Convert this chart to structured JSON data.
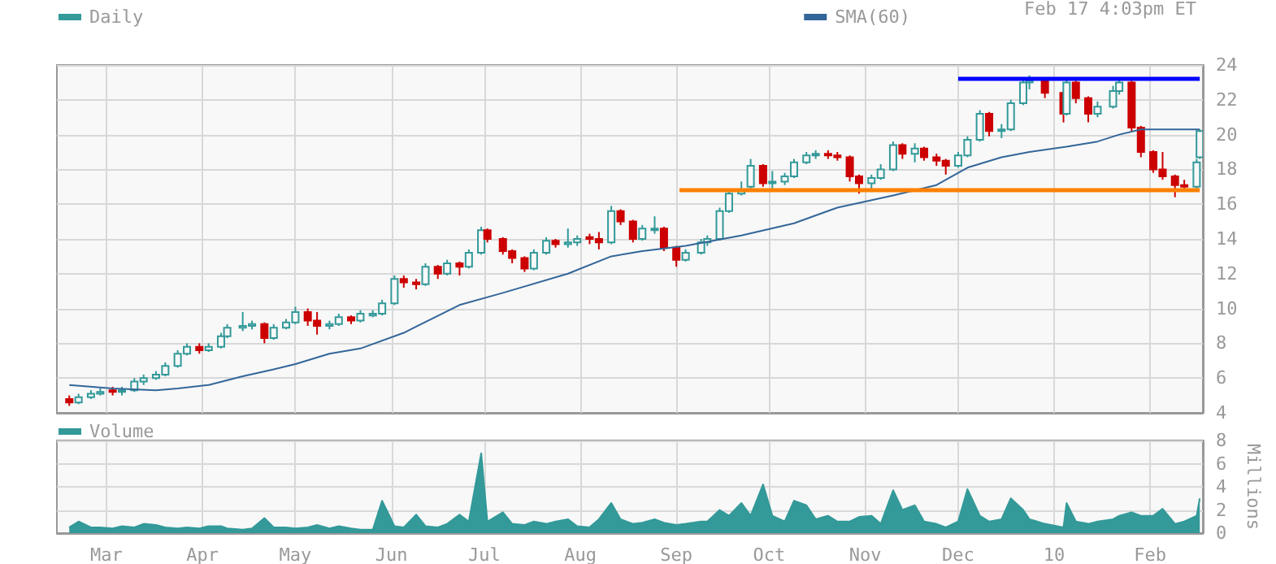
{
  "chart_data": [
    {
      "type": "candlestick",
      "legend": "top",
      "grid": true,
      "tick_labels": "y",
      "annotations": [
        "Feb 17 4:03pm ET"
      ],
      "x": [
        "2009-02-17",
        "2009-02-20",
        "2009-02-24",
        "2009-02-27",
        "2009-03-03",
        "2009-03-06",
        "2009-03-10",
        "2009-03-13",
        "2009-03-17",
        "2009-03-20",
        "2009-03-24",
        "2009-03-27",
        "2009-03-31",
        "2009-04-03",
        "2009-04-07",
        "2009-04-09",
        "2009-04-14",
        "2009-04-17",
        "2009-04-21",
        "2009-04-24",
        "2009-04-28",
        "2009-05-01",
        "2009-05-05",
        "2009-05-08",
        "2009-05-12",
        "2009-05-15",
        "2009-05-19",
        "2009-05-22",
        "2009-05-26",
        "2009-05-29",
        "2009-06-02",
        "2009-06-05",
        "2009-06-09",
        "2009-06-12",
        "2009-06-16",
        "2009-06-19",
        "2009-06-23",
        "2009-06-26",
        "2009-06-30",
        "2009-07-02",
        "2009-07-07",
        "2009-07-10",
        "2009-07-14",
        "2009-07-17",
        "2009-07-21",
        "2009-07-24",
        "2009-07-28",
        "2009-07-31",
        "2009-08-04",
        "2009-08-07",
        "2009-08-11",
        "2009-08-14",
        "2009-08-18",
        "2009-08-21",
        "2009-08-25",
        "2009-08-28",
        "2009-09-01",
        "2009-09-04",
        "2009-09-09",
        "2009-09-11",
        "2009-09-15",
        "2009-09-18",
        "2009-09-22",
        "2009-09-25",
        "2009-09-29",
        "2009-10-02",
        "2009-10-06",
        "2009-10-09",
        "2009-10-13",
        "2009-10-16",
        "2009-10-20",
        "2009-10-23",
        "2009-10-27",
        "2009-10-30",
        "2009-11-03",
        "2009-11-06",
        "2009-11-10",
        "2009-11-13",
        "2009-11-17",
        "2009-11-20",
        "2009-11-24",
        "2009-11-27",
        "2009-12-01",
        "2009-12-04",
        "2009-12-08",
        "2009-12-11",
        "2009-12-15",
        "2009-12-18",
        "2009-12-22",
        "2009-12-24",
        "2009-12-29",
        "2010-01-04",
        "2010-01-05",
        "2010-01-08",
        "2010-01-12",
        "2010-01-15",
        "2010-01-20",
        "2010-01-22",
        "2010-01-26",
        "2010-01-29",
        "2010-02-02",
        "2010-02-05",
        "2010-02-09",
        "2010-02-12",
        "2010-02-16",
        "2010-02-17"
      ],
      "xlim": [
        "2009-02-13",
        "2010-02-18"
      ],
      "xticks": [
        {
          "value": "2009-03-01",
          "label": null
        },
        {
          "value": "2009-04-01",
          "label": null
        },
        {
          "value": "2009-05-01",
          "label": null
        },
        {
          "value": "2009-06-01",
          "label": null
        },
        {
          "value": "2009-07-01",
          "label": null
        },
        {
          "value": "2009-08-01",
          "label": null
        },
        {
          "value": "2009-09-01",
          "label": null
        },
        {
          "value": "2009-10-01",
          "label": null
        },
        {
          "value": "2009-11-01",
          "label": null
        },
        {
          "value": "2009-12-01",
          "label": null
        },
        {
          "value": "2010-01-01",
          "label": null
        },
        {
          "value": "2010-02-01",
          "label": null
        }
      ],
      "ylim": [
        4,
        24
      ],
      "yticks": [
        4,
        6,
        8,
        10,
        12,
        14,
        16,
        18,
        20,
        22,
        24
      ],
      "series": [
        {
          "name": "Daily",
          "color": "#339999",
          "ohlc": [
            [
              4.8,
              5.0,
              4.4,
              4.6
            ],
            [
              4.6,
              5.1,
              4.5,
              4.9
            ],
            [
              4.9,
              5.3,
              4.8,
              5.1
            ],
            [
              5.1,
              5.4,
              5.0,
              5.2
            ],
            [
              5.3,
              5.5,
              5.0,
              5.2
            ],
            [
              5.2,
              5.5,
              5.0,
              5.3
            ],
            [
              5.3,
              6.0,
              5.2,
              5.8
            ],
            [
              5.8,
              6.2,
              5.6,
              6.0
            ],
            [
              6.0,
              6.4,
              5.9,
              6.2
            ],
            [
              6.2,
              6.9,
              6.1,
              6.7
            ],
            [
              6.7,
              7.6,
              6.6,
              7.4
            ],
            [
              7.4,
              8.0,
              7.3,
              7.8
            ],
            [
              7.8,
              8.0,
              7.4,
              7.6
            ],
            [
              7.6,
              8.0,
              7.5,
              7.8
            ],
            [
              7.8,
              8.6,
              7.7,
              8.4
            ],
            [
              8.4,
              9.1,
              8.3,
              8.9
            ],
            [
              8.9,
              9.8,
              8.7,
              9.0
            ],
            [
              9.0,
              9.3,
              8.8,
              9.1
            ],
            [
              9.1,
              9.2,
              8.0,
              8.3
            ],
            [
              8.3,
              9.1,
              8.2,
              8.9
            ],
            [
              8.9,
              9.4,
              8.8,
              9.2
            ],
            [
              9.2,
              10.1,
              9.1,
              9.8
            ],
            [
              9.8,
              10.0,
              9.0,
              9.3
            ],
            [
              9.3,
              9.8,
              8.5,
              9.0
            ],
            [
              9.0,
              9.3,
              8.8,
              9.1
            ],
            [
              9.1,
              9.7,
              9.0,
              9.5
            ],
            [
              9.5,
              9.6,
              9.1,
              9.3
            ],
            [
              9.3,
              9.9,
              9.2,
              9.7
            ],
            [
              9.6,
              9.9,
              9.5,
              9.7
            ],
            [
              9.7,
              10.5,
              9.6,
              10.3
            ],
            [
              10.3,
              11.9,
              10.2,
              11.7
            ],
            [
              11.7,
              11.9,
              11.2,
              11.5
            ],
            [
              11.5,
              11.7,
              11.1,
              11.4
            ],
            [
              11.4,
              12.6,
              11.3,
              12.4
            ],
            [
              12.4,
              12.5,
              11.7,
              12.0
            ],
            [
              12.0,
              12.8,
              11.9,
              12.6
            ],
            [
              12.6,
              12.7,
              11.9,
              12.4
            ],
            [
              12.4,
              13.4,
              12.3,
              13.2
            ],
            [
              13.2,
              14.7,
              13.1,
              14.5
            ],
            [
              14.5,
              14.6,
              13.8,
              14.0
            ],
            [
              14.0,
              14.1,
              13.1,
              13.3
            ],
            [
              13.3,
              13.4,
              12.6,
              12.9
            ],
            [
              12.9,
              13.0,
              12.1,
              12.3
            ],
            [
              12.3,
              13.4,
              12.2,
              13.2
            ],
            [
              13.2,
              14.1,
              13.1,
              13.9
            ],
            [
              13.9,
              14.0,
              13.5,
              13.7
            ],
            [
              13.7,
              14.6,
              13.5,
              13.8
            ],
            [
              13.8,
              14.2,
              13.6,
              14.0
            ],
            [
              14.1,
              14.3,
              13.7,
              14.0
            ],
            [
              14.0,
              14.4,
              13.4,
              13.8
            ],
            [
              13.8,
              15.9,
              13.7,
              15.6
            ],
            [
              15.6,
              15.7,
              14.8,
              15.0
            ],
            [
              15.0,
              15.1,
              13.8,
              14.0
            ],
            [
              14.0,
              14.8,
              13.9,
              14.6
            ],
            [
              14.5,
              15.3,
              14.3,
              14.6
            ],
            [
              14.6,
              14.7,
              13.3,
              13.5
            ],
            [
              13.5,
              13.6,
              12.4,
              12.8
            ],
            [
              12.8,
              13.4,
              12.7,
              13.2
            ],
            [
              13.2,
              14.0,
              13.1,
              13.8
            ],
            [
              13.8,
              14.2,
              13.6,
              14.0
            ],
            [
              14.0,
              15.8,
              13.9,
              15.6
            ],
            [
              15.6,
              16.8,
              15.5,
              16.6
            ],
            [
              16.6,
              17.3,
              16.5,
              16.8
            ],
            [
              17.0,
              18.6,
              16.9,
              18.2
            ],
            [
              18.2,
              18.3,
              17.0,
              17.2
            ],
            [
              17.2,
              17.9,
              16.9,
              17.3
            ],
            [
              17.3,
              17.8,
              17.1,
              17.6
            ],
            [
              17.6,
              18.6,
              17.5,
              18.4
            ],
            [
              18.4,
              19.0,
              18.3,
              18.8
            ],
            [
              18.8,
              19.1,
              18.6,
              18.9
            ],
            [
              18.9,
              19.1,
              18.6,
              18.8
            ],
            [
              18.8,
              19.0,
              18.5,
              18.7
            ],
            [
              18.7,
              18.8,
              17.3,
              17.6
            ],
            [
              17.6,
              17.7,
              16.6,
              17.2
            ],
            [
              17.2,
              17.7,
              16.7,
              17.5
            ],
            [
              17.5,
              18.3,
              17.4,
              18.0
            ],
            [
              18.0,
              19.6,
              17.9,
              19.4
            ],
            [
              19.4,
              19.5,
              18.6,
              18.9
            ],
            [
              18.9,
              19.5,
              18.4,
              19.2
            ],
            [
              19.2,
              19.3,
              18.5,
              18.7
            ],
            [
              18.7,
              18.9,
              18.2,
              18.5
            ],
            [
              18.5,
              18.6,
              17.7,
              18.2
            ],
            [
              18.2,
              19.0,
              18.1,
              18.8
            ],
            [
              18.8,
              19.9,
              18.7,
              19.7
            ],
            [
              19.7,
              21.4,
              19.6,
              21.2
            ],
            [
              21.2,
              21.3,
              19.9,
              20.2
            ],
            [
              20.2,
              20.6,
              19.8,
              20.3
            ],
            [
              20.3,
              22.0,
              20.2,
              21.8
            ],
            [
              21.8,
              23.2,
              21.7,
              23.0
            ],
            [
              23.0,
              23.4,
              22.6,
              23.1
            ],
            [
              23.1,
              23.2,
              22.1,
              22.4
            ],
            [
              22.4,
              22.5,
              20.7,
              21.2
            ],
            [
              21.2,
              23.3,
              21.1,
              23.0
            ],
            [
              23.0,
              23.1,
              21.8,
              22.1
            ],
            [
              22.1,
              22.2,
              20.7,
              21.2
            ],
            [
              21.2,
              21.9,
              21.0,
              21.6
            ],
            [
              21.6,
              22.8,
              21.5,
              22.5
            ],
            [
              22.5,
              23.2,
              22.3,
              23.0
            ],
            [
              23.0,
              23.1,
              20.2,
              20.4
            ],
            [
              20.4,
              20.5,
              18.7,
              19.0
            ],
            [
              19.0,
              19.1,
              17.8,
              18.0
            ],
            [
              18.0,
              19.0,
              17.4,
              17.6
            ],
            [
              17.6,
              17.7,
              16.4,
              17.1
            ],
            [
              17.1,
              17.4,
              16.8,
              17.0
            ],
            [
              17.0,
              18.6,
              16.9,
              18.4
            ],
            [
              18.7,
              20.3,
              18.6,
              20.2
            ]
          ],
          "colors": [
            "#cc0000",
            "#339999",
            "#339999",
            "#339999",
            "#cc0000",
            "#339999",
            "#339999",
            "#339999",
            "#339999",
            "#339999",
            "#339999",
            "#339999",
            "#cc0000",
            "#339999",
            "#339999",
            "#339999",
            "#339999",
            "#339999",
            "#cc0000",
            "#339999",
            "#339999",
            "#339999",
            "#cc0000",
            "#cc0000",
            "#339999",
            "#339999",
            "#cc0000",
            "#339999",
            "#339999",
            "#339999",
            "#339999",
            "#cc0000",
            "#cc0000",
            "#339999",
            "#cc0000",
            "#339999",
            "#cc0000",
            "#339999",
            "#339999",
            "#cc0000",
            "#cc0000",
            "#cc0000",
            "#cc0000",
            "#339999",
            "#339999",
            "#cc0000",
            "#339999",
            "#339999",
            "#cc0000",
            "#cc0000",
            "#339999",
            "#cc0000",
            "#cc0000",
            "#339999",
            "#339999",
            "#cc0000",
            "#cc0000",
            "#339999",
            "#339999",
            "#339999",
            "#339999",
            "#339999",
            "#339999",
            "#339999",
            "#cc0000",
            "#339999",
            "#339999",
            "#339999",
            "#339999",
            "#339999",
            "#cc0000",
            "#cc0000",
            "#cc0000",
            "#cc0000",
            "#339999",
            "#339999",
            "#339999",
            "#cc0000",
            "#339999",
            "#cc0000",
            "#cc0000",
            "#cc0000",
            "#339999",
            "#339999",
            "#339999",
            "#cc0000",
            "#339999",
            "#339999",
            "#339999",
            "#339999",
            "#cc0000",
            "#cc0000",
            "#339999",
            "#cc0000",
            "#cc0000",
            "#339999",
            "#339999",
            "#339999",
            "#cc0000",
            "#cc0000",
            "#cc0000",
            "#cc0000",
            "#cc0000",
            "#cc0000",
            "#339999",
            "#339999"
          ]
        },
        {
          "type": "line",
          "name": "SMA(60)",
          "color": "#336699",
          "x": [
            "2009-02-17",
            "2009-03-03",
            "2009-03-17",
            "2009-03-24",
            "2009-04-03",
            "2009-04-14",
            "2009-04-24",
            "2009-05-01",
            "2009-05-12",
            "2009-05-22",
            "2009-06-05",
            "2009-06-23",
            "2009-07-07",
            "2009-07-28",
            "2009-08-11",
            "2009-08-21",
            "2009-09-04",
            "2009-09-22",
            "2009-10-09",
            "2009-10-23",
            "2009-11-10",
            "2009-11-24",
            "2009-12-04",
            "2009-12-15",
            "2009-12-24",
            "2010-01-05",
            "2010-01-15",
            "2010-01-22",
            "2010-01-29",
            "2010-02-17"
          ],
          "values": [
            5.6,
            5.4,
            5.3,
            5.4,
            5.6,
            6.1,
            6.5,
            6.8,
            7.4,
            7.7,
            8.6,
            10.2,
            10.9,
            12.0,
            13.0,
            13.3,
            13.6,
            14.2,
            14.9,
            15.8,
            16.5,
            17.1,
            18.1,
            18.7,
            19.0,
            19.3,
            19.6,
            20.0,
            20.3,
            20.3
          ]
        },
        {
          "type": "line",
          "color": "#0000ff",
          "x": [
            "2009-12-01",
            "2010-02-17"
          ],
          "values": [
            23.2,
            23.2
          ]
        },
        {
          "type": "line",
          "color": "#ff8000",
          "x": [
            "2009-09-02",
            "2010-02-17"
          ],
          "values": [
            16.8,
            16.8
          ]
        }
      ]
    },
    {
      "type": "area",
      "legend": "top left",
      "grid": true,
      "ylabel": "Millions",
      "x": [
        "2009-02-17",
        "2009-02-20",
        "2009-02-24",
        "2009-02-27",
        "2009-03-03",
        "2009-03-06",
        "2009-03-10",
        "2009-03-13",
        "2009-03-17",
        "2009-03-20",
        "2009-03-24",
        "2009-03-27",
        "2009-03-31",
        "2009-04-03",
        "2009-04-07",
        "2009-04-09",
        "2009-04-14",
        "2009-04-17",
        "2009-04-21",
        "2009-04-24",
        "2009-04-28",
        "2009-05-01",
        "2009-05-05",
        "2009-05-08",
        "2009-05-12",
        "2009-05-15",
        "2009-05-19",
        "2009-05-22",
        "2009-05-26",
        "2009-05-29",
        "2009-06-02",
        "2009-06-05",
        "2009-06-09",
        "2009-06-12",
        "2009-06-16",
        "2009-06-19",
        "2009-06-23",
        "2009-06-26",
        "2009-06-30",
        "2009-07-02",
        "2009-07-07",
        "2009-07-10",
        "2009-07-14",
        "2009-07-17",
        "2009-07-21",
        "2009-07-24",
        "2009-07-28",
        "2009-07-31",
        "2009-08-04",
        "2009-08-07",
        "2009-08-11",
        "2009-08-14",
        "2009-08-18",
        "2009-08-21",
        "2009-08-25",
        "2009-08-28",
        "2009-09-01",
        "2009-09-04",
        "2009-09-09",
        "2009-09-11",
        "2009-09-15",
        "2009-09-18",
        "2009-09-22",
        "2009-09-25",
        "2009-09-29",
        "2009-10-02",
        "2009-10-06",
        "2009-10-09",
        "2009-10-13",
        "2009-10-16",
        "2009-10-20",
        "2009-10-23",
        "2009-10-27",
        "2009-10-30",
        "2009-11-03",
        "2009-11-06",
        "2009-11-10",
        "2009-11-13",
        "2009-11-17",
        "2009-11-20",
        "2009-11-24",
        "2009-11-27",
        "2009-12-01",
        "2009-12-04",
        "2009-12-08",
        "2009-12-11",
        "2009-12-15",
        "2009-12-18",
        "2009-12-22",
        "2009-12-24",
        "2009-12-29",
        "2010-01-04",
        "2010-01-05",
        "2010-01-08",
        "2010-01-12",
        "2010-01-15",
        "2010-01-20",
        "2010-01-22",
        "2010-01-26",
        "2010-01-29",
        "2010-02-02",
        "2010-02-05",
        "2010-02-09",
        "2010-02-12",
        "2010-02-16",
        "2010-02-17"
      ],
      "xlim": [
        "2009-02-13",
        "2010-02-18"
      ],
      "xticks": [
        {
          "value": "2009-03-01",
          "label": "Mar"
        },
        {
          "value": "2009-04-01",
          "label": "Apr"
        },
        {
          "value": "2009-05-01",
          "label": "May"
        },
        {
          "value": "2009-06-01",
          "label": "Jun"
        },
        {
          "value": "2009-07-01",
          "label": "Jul"
        },
        {
          "value": "2009-08-01",
          "label": "Aug"
        },
        {
          "value": "2009-09-01",
          "label": "Sep"
        },
        {
          "value": "2009-10-01",
          "label": "Oct"
        },
        {
          "value": "2009-11-01",
          "label": "Nov"
        },
        {
          "value": "2009-12-01",
          "label": "Dec"
        },
        {
          "value": "2010-01-01",
          "label": "10"
        },
        {
          "value": "2010-02-01",
          "label": "Feb"
        }
      ],
      "ylim": [
        0,
        8
      ],
      "yticks": [
        0,
        2,
        4,
        6,
        8
      ],
      "series": [
        {
          "name": "Volume",
          "color": "#339999",
          "values": [
            0.5,
            1.0,
            0.5,
            0.5,
            0.4,
            0.6,
            0.5,
            0.8,
            0.7,
            0.5,
            0.4,
            0.5,
            0.4,
            0.6,
            0.6,
            0.4,
            0.3,
            0.4,
            1.3,
            0.5,
            0.5,
            0.4,
            0.5,
            0.7,
            0.4,
            0.6,
            0.4,
            0.3,
            0.3,
            2.8,
            0.6,
            0.5,
            1.6,
            0.6,
            0.5,
            0.8,
            1.6,
            1.0,
            6.9,
            1.0,
            1.8,
            0.8,
            0.7,
            1.0,
            0.8,
            1.0,
            1.2,
            0.6,
            0.5,
            1.2,
            2.6,
            1.2,
            0.8,
            0.9,
            1.2,
            0.9,
            0.7,
            0.8,
            1.0,
            1.0,
            2.0,
            1.5,
            2.6,
            1.5,
            4.2,
            1.5,
            1.0,
            2.8,
            2.4,
            1.2,
            1.5,
            1.0,
            1.0,
            1.4,
            1.5,
            0.8,
            3.7,
            2.0,
            2.4,
            1.0,
            0.8,
            0.5,
            1.0,
            3.8,
            1.5,
            1.0,
            1.2,
            3.0,
            2.0,
            1.2,
            0.8,
            0.5,
            2.6,
            1.0,
            0.8,
            1.0,
            1.2,
            1.5,
            1.8,
            1.5,
            1.5,
            2.1,
            0.8,
            1.0,
            1.5,
            3.0
          ]
        }
      ]
    }
  ]
}
